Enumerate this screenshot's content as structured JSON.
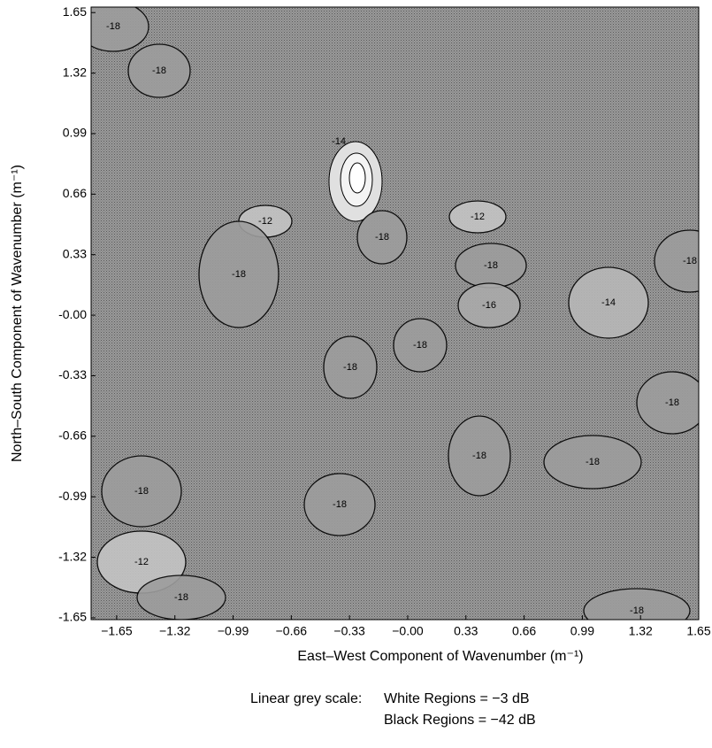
{
  "chart_data": {
    "type": "contour",
    "xlabel": "East–West Component of Wavenumber (m⁻¹)",
    "ylabel": "North–South Component of Wavenumber (m⁻¹)",
    "xlim": [
      -1.795,
      1.65
    ],
    "ylim": [
      -1.66,
      1.68
    ],
    "xticks": [
      {
        "value": -1.65,
        "label": "−1.65"
      },
      {
        "value": -1.32,
        "label": "−1.32"
      },
      {
        "value": -0.99,
        "label": "−0.99"
      },
      {
        "value": -0.66,
        "label": "−0.66"
      },
      {
        "value": -0.33,
        "label": "−0.33"
      },
      {
        "value": 0,
        "label": "−0.00"
      },
      0.33,
      0.66,
      0.99,
      1.32,
      1.65
    ],
    "yticks": [
      1.65,
      1.32,
      0.99,
      0.66,
      0.33,
      {
        "value": 0,
        "label": "-0.00"
      },
      {
        "value": -0.33,
        "label": "-0.33"
      },
      {
        "value": -0.66,
        "label": "-0.66"
      },
      {
        "value": -0.99,
        "label": "-0.99"
      },
      {
        "value": -1.32,
        "label": "-1.32"
      },
      {
        "value": -1.65,
        "label": "-1.65"
      }
    ],
    "zlim": [
      -42,
      -3
    ],
    "contour_labels": [
      {
        "value": -18,
        "label": "-18"
      },
      {
        "value": -18,
        "label": "-18"
      },
      {
        "value": -14,
        "label": "-14"
      },
      {
        "value": -12,
        "label": "-12"
      },
      {
        "value": -12,
        "label": "-12"
      },
      {
        "value": -18,
        "label": "-18"
      },
      {
        "value": -18,
        "label": "-18"
      },
      {
        "value": -18,
        "label": "-18"
      },
      {
        "value": -18,
        "label": "-18"
      },
      {
        "value": -14,
        "label": "-14"
      },
      {
        "value": -16,
        "label": "-16"
      },
      {
        "value": -18,
        "label": "-18"
      },
      {
        "value": -18,
        "label": "-18"
      },
      {
        "value": -18,
        "label": "-18"
      },
      {
        "value": -18,
        "label": "-18"
      },
      {
        "value": -18,
        "label": "-18"
      },
      {
        "value": -18,
        "label": "-18"
      },
      {
        "value": -12,
        "label": "-12"
      },
      {
        "value": -18,
        "label": "-18"
      },
      {
        "value": -18,
        "label": "-18"
      },
      {
        "value": -18,
        "label": "-18"
      }
    ],
    "caption": [
      "Linear grey scale:",
      "White Regions = −3 dB",
      "Black Regions =  −42 dB"
    ]
  }
}
